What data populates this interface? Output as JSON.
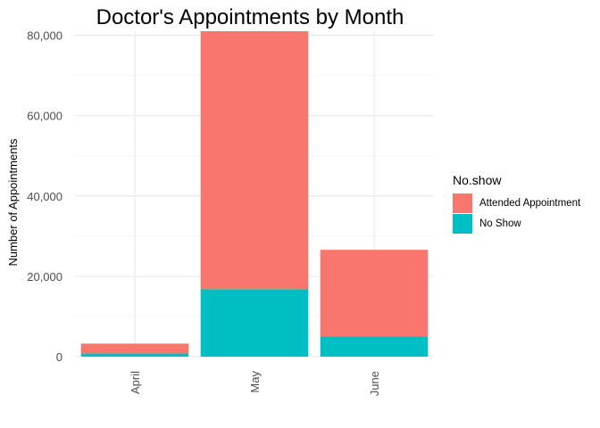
{
  "chart_data": {
    "type": "bar",
    "stacked": true,
    "title": "Doctor's Appointments by Month",
    "xlabel": "",
    "ylabel": "Number of Appointments",
    "categories": [
      "April",
      "May",
      "June"
    ],
    "series": [
      {
        "name": "Attended Appointment",
        "color": "#F8766D",
        "values": [
          2450,
          64200,
          21600
        ]
      },
      {
        "name": "No Show",
        "color": "#00BFC4",
        "values": [
          800,
          16800,
          5000
        ]
      }
    ],
    "ylim": [
      0,
      81000
    ],
    "yticks": [
      0,
      20000,
      40000,
      60000,
      80000
    ],
    "ytick_labels": [
      "0",
      "20,000",
      "40,000",
      "60,000",
      "80,000"
    ],
    "legend": {
      "title": "No.show",
      "position": "right"
    },
    "grid": true
  }
}
